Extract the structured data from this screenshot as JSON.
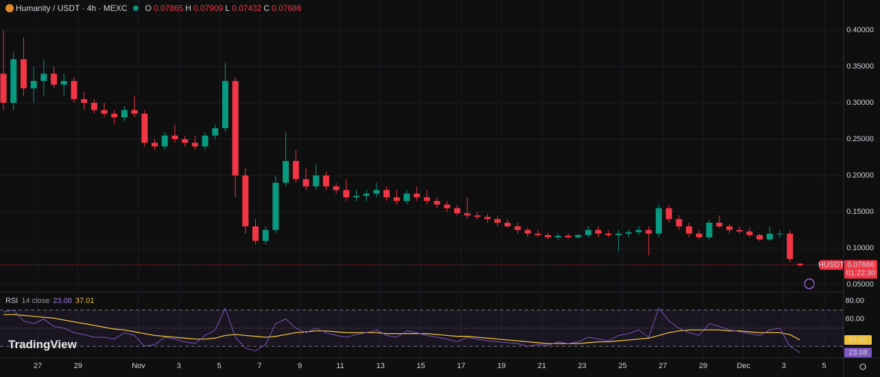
{
  "chart_data": {
    "type": "candlestick",
    "title": "Humanity / USDT · 4h · MEXC",
    "ohlc_names": [
      "O",
      "H",
      "L",
      "C"
    ],
    "symbol": "HUSDT",
    "countdown": "01:22:30",
    "watermark": "TradingView",
    "up_color": "#089981",
    "down_color": "#f23645",
    "x": [
      25.3,
      25.8,
      26.3,
      26.8,
      27.3,
      27.8,
      28.3,
      28.8,
      29.3,
      29.8,
      30.3,
      30.8,
      31.3,
      31.8,
      32.3,
      32.8,
      33.3,
      33.8,
      34.3,
      34.8,
      35.3,
      35.8,
      36.3,
      36.8,
      37.3,
      37.8,
      38.3,
      38.8,
      39.3,
      39.8,
      40.3,
      40.8,
      41.3,
      41.8,
      42.3,
      42.8,
      43.3,
      43.8,
      44.3,
      44.8,
      45.3,
      45.8,
      46.3,
      46.8,
      47.3,
      47.8,
      48.3,
      48.8,
      49.3,
      49.8,
      50.3,
      50.8,
      51.3,
      51.8,
      52.3,
      52.8,
      53.3,
      53.8,
      54.3,
      54.8,
      55.3,
      55.8,
      56.3,
      56.8,
      57.3,
      57.8,
      58.3,
      58.8,
      59.3,
      59.8,
      60.3,
      60.8,
      61.3,
      61.8,
      62.3,
      62.8,
      63.3,
      63.8,
      64.3,
      64.8
    ],
    "open": [
      0.34,
      0.3,
      0.36,
      0.32,
      0.33,
      0.34,
      0.325,
      0.33,
      0.305,
      0.3,
      0.29,
      0.285,
      0.28,
      0.29,
      0.285,
      0.245,
      0.24,
      0.255,
      0.25,
      0.245,
      0.24,
      0.255,
      0.265,
      0.33,
      0.2,
      0.13,
      0.11,
      0.125,
      0.19,
      0.22,
      0.195,
      0.185,
      0.2,
      0.185,
      0.18,
      0.17,
      0.172,
      0.175,
      0.18,
      0.17,
      0.165,
      0.175,
      0.17,
      0.165,
      0.16,
      0.155,
      0.148,
      0.145,
      0.143,
      0.14,
      0.135,
      0.13,
      0.125,
      0.12,
      0.118,
      0.115,
      0.117,
      0.115,
      0.118,
      0.125,
      0.12,
      0.118,
      0.12,
      0.122,
      0.125,
      0.12,
      0.155,
      0.14,
      0.13,
      0.12,
      0.115,
      0.135,
      0.13,
      0.125,
      0.123,
      0.118,
      0.112,
      0.12,
      0.12,
      0.07865
    ],
    "high": [
      0.4,
      0.37,
      0.39,
      0.35,
      0.36,
      0.35,
      0.34,
      0.335,
      0.315,
      0.305,
      0.3,
      0.29,
      0.295,
      0.31,
      0.29,
      0.25,
      0.26,
      0.27,
      0.255,
      0.255,
      0.26,
      0.27,
      0.355,
      0.335,
      0.21,
      0.14,
      0.13,
      0.2,
      0.26,
      0.235,
      0.21,
      0.215,
      0.205,
      0.19,
      0.195,
      0.18,
      0.18,
      0.19,
      0.185,
      0.18,
      0.18,
      0.185,
      0.18,
      0.17,
      0.165,
      0.16,
      0.17,
      0.15,
      0.147,
      0.145,
      0.14,
      0.135,
      0.128,
      0.125,
      0.122,
      0.12,
      0.12,
      0.12,
      0.13,
      0.13,
      0.125,
      0.125,
      0.125,
      0.13,
      0.13,
      0.16,
      0.16,
      0.145,
      0.135,
      0.125,
      0.14,
      0.145,
      0.133,
      0.13,
      0.128,
      0.12,
      0.13,
      0.125,
      0.125,
      0.07909
    ],
    "low": [
      0.29,
      0.29,
      0.31,
      0.3,
      0.31,
      0.32,
      0.31,
      0.3,
      0.29,
      0.285,
      0.28,
      0.27,
      0.275,
      0.28,
      0.24,
      0.235,
      0.235,
      0.245,
      0.24,
      0.235,
      0.235,
      0.25,
      0.26,
      0.17,
      0.12,
      0.105,
      0.105,
      0.12,
      0.185,
      0.19,
      0.18,
      0.18,
      0.18,
      0.175,
      0.165,
      0.165,
      0.165,
      0.17,
      0.165,
      0.16,
      0.16,
      0.165,
      0.16,
      0.155,
      0.15,
      0.145,
      0.14,
      0.14,
      0.135,
      0.13,
      0.128,
      0.12,
      0.115,
      0.115,
      0.112,
      0.112,
      0.113,
      0.113,
      0.115,
      0.115,
      0.115,
      0.095,
      0.115,
      0.118,
      0.09,
      0.115,
      0.135,
      0.125,
      0.115,
      0.112,
      0.112,
      0.128,
      0.12,
      0.12,
      0.115,
      0.11,
      0.11,
      0.115,
      0.08,
      0.07432
    ],
    "close": [
      0.3,
      0.36,
      0.32,
      0.33,
      0.34,
      0.325,
      0.33,
      0.305,
      0.3,
      0.29,
      0.285,
      0.28,
      0.29,
      0.285,
      0.245,
      0.24,
      0.255,
      0.25,
      0.245,
      0.24,
      0.255,
      0.265,
      0.33,
      0.2,
      0.13,
      0.11,
      0.125,
      0.19,
      0.22,
      0.195,
      0.185,
      0.2,
      0.185,
      0.18,
      0.17,
      0.172,
      0.175,
      0.18,
      0.17,
      0.165,
      0.175,
      0.17,
      0.165,
      0.16,
      0.155,
      0.148,
      0.145,
      0.143,
      0.14,
      0.135,
      0.13,
      0.125,
      0.12,
      0.118,
      0.115,
      0.117,
      0.115,
      0.118,
      0.125,
      0.12,
      0.118,
      0.12,
      0.122,
      0.125,
      0.12,
      0.155,
      0.14,
      0.13,
      0.12,
      0.115,
      0.135,
      0.13,
      0.125,
      0.123,
      0.118,
      0.112,
      0.12,
      0.12,
      0.085,
      0.07686
    ],
    "xlim": [
      25.129,
      66.966
    ],
    "xticks": [
      {
        "value": 27,
        "label": "27"
      },
      {
        "value": 29,
        "label": "29"
      },
      {
        "value": 32,
        "label": "Nov"
      },
      {
        "value": 34,
        "label": "3"
      },
      {
        "value": 36,
        "label": "5"
      },
      {
        "value": 38,
        "label": "7"
      },
      {
        "value": 40,
        "label": "9"
      },
      {
        "value": 42,
        "label": "11"
      },
      {
        "value": 44,
        "label": "13"
      },
      {
        "value": 46,
        "label": "15"
      },
      {
        "value": 48,
        "label": "17"
      },
      {
        "value": 50,
        "label": "19"
      },
      {
        "value": 52,
        "label": "21"
      },
      {
        "value": 54,
        "label": "23"
      },
      {
        "value": 56,
        "label": "25"
      },
      {
        "value": 58,
        "label": "27"
      },
      {
        "value": 60,
        "label": "29"
      },
      {
        "value": 62,
        "label": "Dec"
      },
      {
        "value": 64,
        "label": "3"
      },
      {
        "value": 66,
        "label": "5"
      }
    ],
    "ylim": [
      0.0406,
      0.4415
    ],
    "yticks": [
      {
        "value": 0.05,
        "label": "0.05000"
      },
      {
        "value": 0.1,
        "label": "0.10000"
      },
      {
        "value": 0.15,
        "label": "0.15000"
      },
      {
        "value": 0.2,
        "label": "0.20000"
      },
      {
        "value": 0.25,
        "label": "0.25000"
      },
      {
        "value": 0.3,
        "label": "0.30000"
      },
      {
        "value": 0.35,
        "label": "0.35000"
      },
      {
        "value": 0.4,
        "label": "0.40000"
      }
    ],
    "rsi": {
      "name": "RSI",
      "params": "14 close",
      "color": "#7e57c2",
      "ma_color": "#f0c23a",
      "ylim": [
        17.36,
        89.06
      ],
      "yticks": [
        {
          "value": 80,
          "label": "80.00"
        },
        {
          "value": 60,
          "label": "60.00"
        }
      ],
      "bands": [
        30,
        50,
        70
      ],
      "values": [
        68,
        70,
        58,
        55,
        60,
        52,
        50,
        45,
        43,
        40,
        40,
        38,
        45,
        42,
        30,
        32,
        40,
        38,
        35,
        33,
        42,
        48,
        72,
        40,
        28,
        25,
        32,
        55,
        60,
        50,
        45,
        50,
        45,
        42,
        40,
        43,
        45,
        48,
        42,
        40,
        47,
        45,
        42,
        40,
        38,
        35,
        40,
        38,
        36,
        35,
        34,
        33,
        30,
        32,
        31,
        35,
        33,
        35,
        40,
        38,
        36,
        42,
        44,
        48,
        40,
        72,
        58,
        50,
        45,
        42,
        55,
        52,
        48,
        46,
        44,
        42,
        48,
        50,
        30,
        23.08
      ],
      "ma": [
        65,
        65,
        64,
        63,
        62,
        61,
        59,
        57,
        55,
        53,
        51,
        49,
        48,
        46,
        44,
        42,
        41,
        40,
        39,
        38,
        38,
        39,
        42,
        43,
        42,
        41,
        40,
        41,
        43,
        45,
        46,
        47,
        47,
        46,
        45,
        45,
        45,
        45,
        44,
        44,
        44,
        44,
        44,
        43,
        42,
        41,
        41,
        40,
        39,
        38,
        37,
        36,
        35,
        34,
        33,
        33,
        33,
        33,
        34,
        35,
        35,
        36,
        37,
        38,
        39,
        42,
        45,
        47,
        48,
        48,
        48,
        48,
        47,
        47,
        46,
        45,
        45,
        45,
        43,
        37.01
      ]
    }
  }
}
